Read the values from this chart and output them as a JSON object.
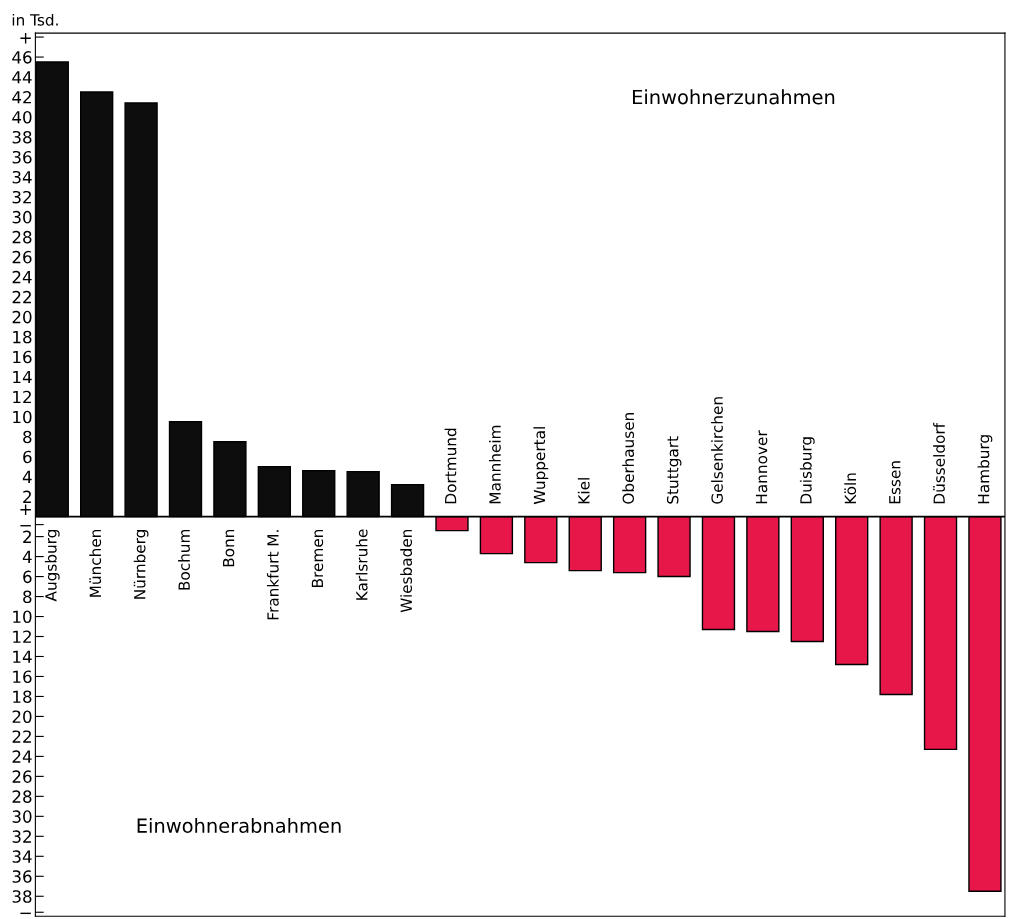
{
  "chart_data": {
    "type": "bar",
    "ylabel": "in Tsd.",
    "categories": [
      "Augsburg",
      "München",
      "Nürnberg",
      "Bochum",
      "Bonn",
      "Frankfurt M.",
      "Bremen",
      "Karlsruhe",
      "Wiesbaden",
      "Dortmund",
      "Mannheim",
      "Wuppertal",
      "Kiel",
      "Oberhausen",
      "Stuttgart",
      "Gelsenkirchen",
      "Hannover",
      "Duisburg",
      "Köln",
      "Essen",
      "Düsseldorf",
      "Hamburg"
    ],
    "values": [
      45.5,
      42.5,
      41.4,
      9.5,
      7.5,
      5.0,
      4.6,
      4.5,
      3.2,
      -1.4,
      -3.7,
      -4.6,
      -5.4,
      -5.6,
      -6.0,
      -11.3,
      -11.5,
      -12.5,
      -14.8,
      -17.8,
      -23.3,
      -37.5
    ],
    "colors": [
      "#0d0d0d",
      "#0d0d0d",
      "#0d0d0d",
      "#0d0d0d",
      "#0d0d0d",
      "#0d0d0d",
      "#0d0d0d",
      "#0d0d0d",
      "#0d0d0d",
      "#e8174a",
      "#e8174a",
      "#e8174a",
      "#e8174a",
      "#e8174a",
      "#e8174a",
      "#e8174a",
      "#e8174a",
      "#e8174a",
      "#e8174a",
      "#e8174a",
      "#e8174a",
      "#e8174a"
    ],
    "ylim": [
      -40,
      48.4
    ],
    "yticks": [
      {
        "value": 48,
        "label": "+"
      },
      46,
      44,
      42,
      40,
      38,
      36,
      34,
      32,
      30,
      28,
      26,
      24,
      22,
      20,
      18,
      16,
      14,
      12,
      10,
      8,
      6,
      4,
      2,
      {
        "value": 0.8,
        "label": "+"
      },
      {
        "value": -0.8,
        "label": "−"
      },
      {
        "value": -2,
        "label": "2"
      },
      {
        "value": -4,
        "label": "4"
      },
      {
        "value": -6,
        "label": "6"
      },
      {
        "value": -8,
        "label": "8"
      },
      {
        "value": -10,
        "label": "10"
      },
      {
        "value": -12,
        "label": "12"
      },
      {
        "value": -14,
        "label": "14"
      },
      {
        "value": -16,
        "label": "16"
      },
      {
        "value": -18,
        "label": "18"
      },
      {
        "value": -20,
        "label": "20"
      },
      {
        "value": -22,
        "label": "22"
      },
      {
        "value": -24,
        "label": "24"
      },
      {
        "value": -26,
        "label": "26"
      },
      {
        "value": -28,
        "label": "28"
      },
      {
        "value": -30,
        "label": "30"
      },
      {
        "value": -32,
        "label": "32"
      },
      {
        "value": -34,
        "label": "34"
      },
      {
        "value": -36,
        "label": "36"
      },
      {
        "value": -38,
        "label": "38"
      },
      {
        "value": -39.6,
        "label": "−"
      }
    ],
    "annotations": [
      "Einwohnerzunahmen",
      "Einwohnerabnahmen"
    ],
    "grid": false,
    "legend": false
  }
}
